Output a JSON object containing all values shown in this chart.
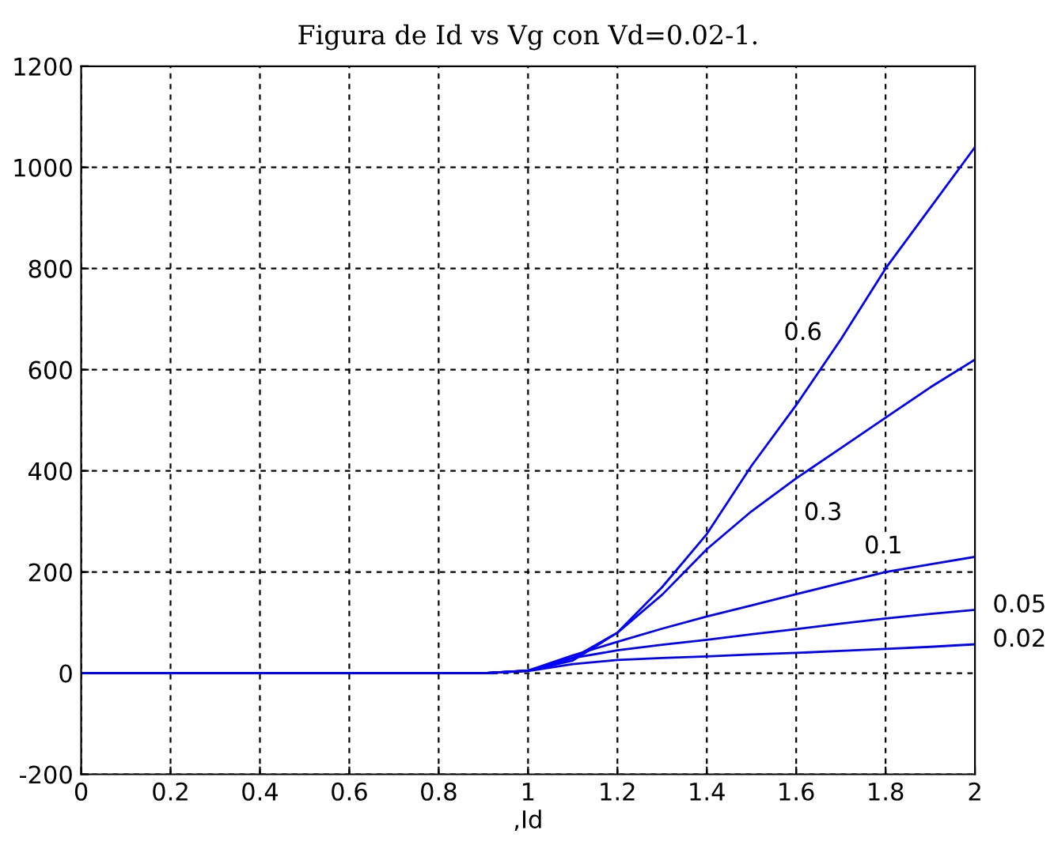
{
  "chart_data": {
    "type": "line",
    "title": "Figura de Id vs Vg con Vd=0.02-1.",
    "xlabel": ",Id",
    "xlim": [
      0,
      2
    ],
    "ylim": [
      -200,
      1200
    ],
    "xticks": [
      0,
      0.2,
      0.4,
      0.6,
      0.8,
      1,
      1.2,
      1.4,
      1.6,
      1.8,
      2
    ],
    "yticks": [
      -200,
      0,
      200,
      400,
      600,
      800,
      1000,
      1200
    ],
    "grid": true,
    "line_style": "solid",
    "marker": "none",
    "x": [
      0,
      0.9,
      1.0,
      1.1,
      1.2,
      1.3,
      1.4,
      1.5,
      1.6,
      1.7,
      1.8,
      1.9,
      2.0
    ],
    "series": [
      {
        "color": "#0000ff",
        "values": [
          0,
          0,
          5,
          25,
          80,
          170,
          275,
          410,
          530,
          660,
          800,
          920,
          1040
        ]
      },
      {
        "color": "#0000ff",
        "values": [
          0,
          0,
          5,
          30,
          80,
          155,
          245,
          320,
          385,
          445,
          505,
          565,
          620
        ]
      },
      {
        "color": "#0000ff",
        "values": [
          0,
          0,
          5,
          35,
          62,
          88,
          112,
          134,
          156,
          178,
          200,
          215,
          230
        ]
      },
      {
        "name": "0.05",
        "color": "#0000ff",
        "values": [
          0,
          0,
          5,
          30,
          45,
          56,
          66,
          77,
          87,
          98,
          108,
          117,
          125
        ]
      },
      {
        "name": "0.02",
        "color": "#0000ff",
        "values": [
          0,
          0,
          4,
          18,
          26,
          30,
          33,
          37,
          40,
          44,
          48,
          52,
          57
        ]
      }
    ],
    "annotations": [
      {
        "text": "0.6",
        "x": 1.615,
        "y": 672
      },
      {
        "text": "0.3",
        "x": 1.66,
        "y": 316
      },
      {
        "text": "0.1",
        "x": 1.795,
        "y": 250
      }
    ]
  }
}
